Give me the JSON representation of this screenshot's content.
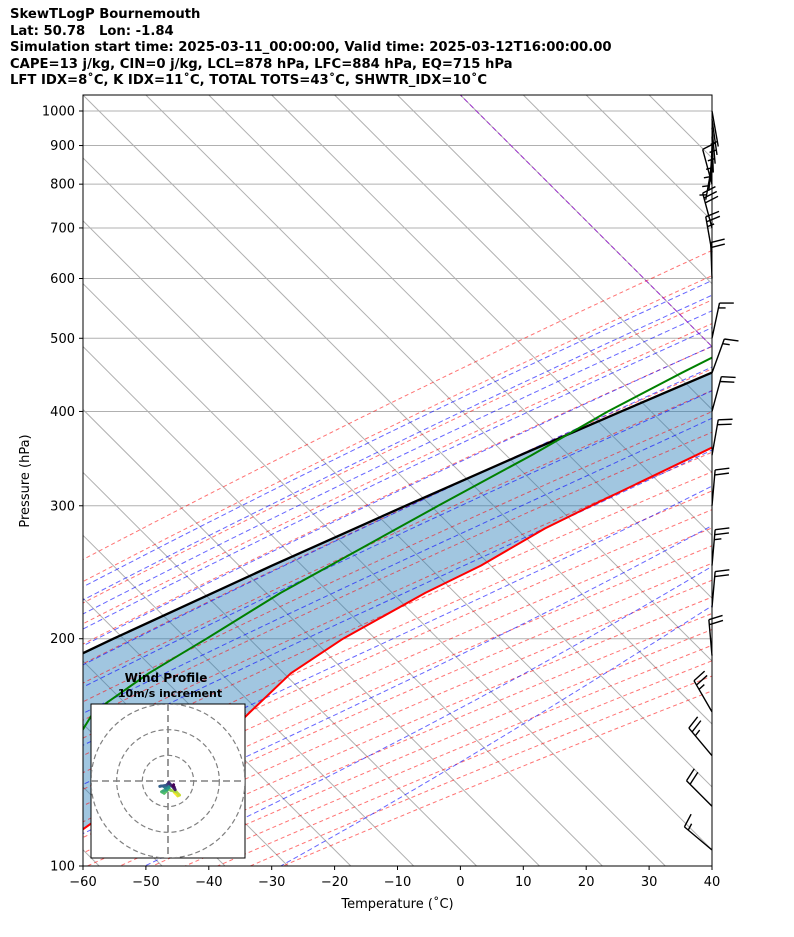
{
  "header": {
    "line1": "SkewTLogP Bournemouth",
    "line2": "Lat: 50.78   Lon: -1.84",
    "line3": "Simulation start time: 2025-03-11_00:00:00, Valid time: 2025-03-12T16:00:00.00",
    "line4": "CAPE=13 j/kg, CIN=0 j/kg, LCL=878 hPa, LFC=884 hPa, EQ=715 hPa",
    "line5": "LFT IDX=8˚C, K IDX=11˚C, TOTAL TOTS=43˚C, SHWTR_IDX=10˚C"
  },
  "chart_data": {
    "type": "line",
    "xlabel": "Temperature (˚C)",
    "ylabel": "Pressure (hPa)",
    "xlim": [
      -60,
      40
    ],
    "ylim": [
      1050,
      100
    ],
    "x_ticks": [
      "−60",
      "−50",
      "−40",
      "−30",
      "−20",
      "−10",
      "0",
      "10",
      "20",
      "30",
      "40"
    ],
    "y_ticks": [
      {
        "p": 100,
        "label": "100"
      },
      {
        "p": 200,
        "label": "200"
      },
      {
        "p": 300,
        "label": "300"
      },
      {
        "p": 400,
        "label": "400"
      },
      {
        "p": 500,
        "label": "500"
      },
      {
        "p": 600,
        "label": "600"
      },
      {
        "p": 700,
        "label": "700"
      },
      {
        "p": 800,
        "label": "800"
      },
      {
        "p": 900,
        "label": "900"
      },
      {
        "p": 1000,
        "label": "1000"
      }
    ],
    "grid": true,
    "colors": {
      "temperature": "#ff0000",
      "dewpoint": "#008000",
      "parcel": "#000000",
      "cape_fill": "#1f77b4",
      "dry_adiabat": "#ff0000",
      "moist_adiabat": "#0000ff",
      "isotherm_0": "#9400d3"
    },
    "series": [
      {
        "key": "temperature",
        "points": [
          [
            1000,
            7.9
          ],
          [
            950,
            5.3
          ],
          [
            900,
            2.7
          ],
          [
            850,
            -0.3
          ],
          [
            800,
            -2.6
          ],
          [
            750,
            -3.5
          ],
          [
            700,
            -4.2
          ],
          [
            650,
            -4.3
          ],
          [
            600,
            -5.7
          ],
          [
            550,
            -8.0
          ],
          [
            500,
            -11.4
          ],
          [
            450,
            -15.5
          ],
          [
            400,
            -20.5
          ],
          [
            350,
            -27.8
          ],
          [
            300,
            -36.5
          ],
          [
            280,
            -40.2
          ],
          [
            250,
            -44.5
          ],
          [
            230,
            -49.0
          ],
          [
            200,
            -54.8
          ],
          [
            180,
            -57.6
          ],
          [
            160,
            -57.9
          ],
          [
            150,
            -58.0
          ],
          [
            140,
            -58.9
          ],
          [
            130,
            -61.8
          ],
          [
            120,
            -64.3
          ],
          [
            110,
            -66.2
          ],
          [
            100,
            -68.3
          ]
        ]
      },
      {
        "key": "dewpoint",
        "points": [
          [
            1000,
            -0.3
          ],
          [
            950,
            -0.6
          ],
          [
            900,
            0.0
          ],
          [
            880,
            -1.4
          ],
          [
            850,
            -4.6
          ],
          [
            800,
            -7.8
          ],
          [
            750,
            -10.5
          ],
          [
            700,
            -13.9
          ],
          [
            650,
            -18.3
          ],
          [
            600,
            -25.0
          ],
          [
            550,
            -31.4
          ],
          [
            520,
            -33.8
          ],
          [
            500,
            -37.8
          ],
          [
            450,
            -43.2
          ],
          [
            400,
            -48.8
          ],
          [
            350,
            -54.0
          ],
          [
            300,
            -60.8
          ],
          [
            250,
            -68.5
          ],
          [
            230,
            -72.0
          ],
          [
            200,
            -76.5
          ],
          [
            180,
            -80.2
          ],
          [
            160,
            -82.8
          ],
          [
            150,
            -81.5
          ],
          [
            130,
            -80.0
          ],
          [
            115,
            -78.6
          ],
          [
            100,
            -77.2
          ]
        ]
      },
      {
        "key": "parcel",
        "points": [
          [
            1000,
            8.0
          ],
          [
            950,
            4.7
          ],
          [
            900,
            -0.3
          ],
          [
            878,
            -1.8
          ],
          [
            850,
            -4.3
          ],
          [
            800,
            -6.8
          ],
          [
            750,
            -8.6
          ],
          [
            715,
            -10.3
          ],
          [
            700,
            -11.6
          ],
          [
            650,
            -15.0
          ],
          [
            600,
            -19.6
          ],
          [
            550,
            -25.1
          ],
          [
            500,
            -31.4
          ],
          [
            450,
            -38.5
          ],
          [
            400,
            -46.7
          ],
          [
            350,
            -55.8
          ],
          [
            300,
            -66.0
          ],
          [
            250,
            -77.7
          ],
          [
            200,
            -91.3
          ],
          [
            150,
            -107.8
          ],
          [
            100,
            -127.9
          ]
        ]
      }
    ],
    "wind_barbs": [
      {
        "p": 1000,
        "dir": 170,
        "speed_kt": 5
      },
      {
        "p": 975,
        "dir": 172,
        "speed_kt": 5
      },
      {
        "p": 950,
        "dir": 175,
        "speed_kt": 5
      },
      {
        "p": 925,
        "dir": 178,
        "speed_kt": 5
      },
      {
        "p": 900,
        "dir": 182,
        "speed_kt": 5
      },
      {
        "p": 875,
        "dir": 185,
        "speed_kt": 5
      },
      {
        "p": 850,
        "dir": 190,
        "speed_kt": 5
      },
      {
        "p": 800,
        "dir": 345,
        "speed_kt": 10
      },
      {
        "p": 700,
        "dir": 345,
        "speed_kt": 30
      },
      {
        "p": 650,
        "dir": 350,
        "speed_kt": 25
      },
      {
        "p": 600,
        "dir": 358,
        "speed_kt": 20
      },
      {
        "p": 500,
        "dir": 12,
        "speed_kt": 15
      },
      {
        "p": 450,
        "dir": 20,
        "speed_kt": 15
      },
      {
        "p": 400,
        "dir": 15,
        "speed_kt": 20
      },
      {
        "p": 350,
        "dir": 10,
        "speed_kt": 20
      },
      {
        "p": 300,
        "dir": 5,
        "speed_kt": 20
      },
      {
        "p": 250,
        "dir": 5,
        "speed_kt": 25
      },
      {
        "p": 220,
        "dir": 5,
        "speed_kt": 20
      },
      {
        "p": 190,
        "dir": 355,
        "speed_kt": 20
      },
      {
        "p": 160,
        "dir": 330,
        "speed_kt": 25
      },
      {
        "p": 140,
        "dir": 320,
        "speed_kt": 25
      },
      {
        "p": 120,
        "dir": 315,
        "speed_kt": 20
      },
      {
        "p": 105,
        "dir": 310,
        "speed_kt": 15
      }
    ],
    "hodograph": {
      "title": "Wind Profile",
      "subtitle": "10m/s increment",
      "rings_ms": [
        10,
        20,
        30
      ],
      "radius_ms": 30,
      "points": [
        [
          2.5,
          -4.5
        ],
        [
          3.8,
          -5.8
        ],
        [
          4.5,
          -5.5
        ],
        [
          3.2,
          -4.2
        ],
        [
          1.0,
          -3.6
        ],
        [
          0.5,
          -3.0
        ],
        [
          -0.5,
          -3.9
        ],
        [
          -1.5,
          -4.8
        ],
        [
          -2.5,
          -4.2
        ],
        [
          -1.8,
          -3.8
        ],
        [
          -0.5,
          -3.5
        ],
        [
          0.4,
          -2.5
        ],
        [
          0.7,
          -1.5
        ],
        [
          -1.0,
          -2.8
        ],
        [
          -1.8,
          -2.0
        ],
        [
          -2.5,
          -1.9
        ],
        [
          -3.2,
          -2.1
        ],
        [
          -0.5,
          -1.6
        ],
        [
          -0.2,
          -1.2
        ],
        [
          0.2,
          -1.0
        ],
        [
          0.3,
          -0.6
        ],
        [
          2.8,
          -3.4
        ],
        [
          2.4,
          -2.3
        ],
        [
          2.0,
          -1.8
        ],
        [
          2.2,
          -1.4
        ]
      ]
    }
  }
}
